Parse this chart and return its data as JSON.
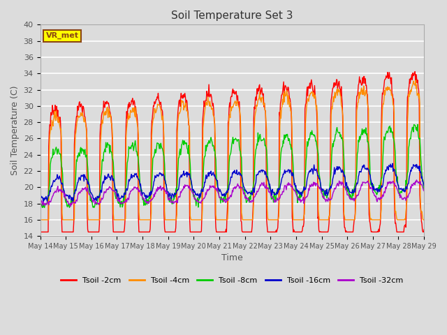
{
  "title": "Soil Temperature Set 3",
  "xlabel": "Time",
  "ylabel": "Soil Temperature (C)",
  "ylim": [
    14,
    40
  ],
  "annotation": "VR_met",
  "annotation_color": "#8B4513",
  "annotation_bg": "#FFFF00",
  "background_color": "#DCDCDC",
  "grid_color": "white",
  "series": [
    {
      "label": "Tsoil -2cm",
      "color": "#FF0000",
      "lw": 1.0
    },
    {
      "label": "Tsoil -4cm",
      "color": "#FF8C00",
      "lw": 1.0
    },
    {
      "label": "Tsoil -8cm",
      "color": "#00CC00",
      "lw": 1.0
    },
    {
      "label": "Tsoil -16cm",
      "color": "#0000CC",
      "lw": 1.0
    },
    {
      "label": "Tsoil -32cm",
      "color": "#AA00CC",
      "lw": 1.0
    }
  ],
  "tick_dates": [
    "May 14",
    "May 15",
    "May 16",
    "May 17",
    "May 18",
    "May 19",
    "May 20",
    "May 21",
    "May 22",
    "May 23",
    "May 24",
    "May 25",
    "May 26",
    "May 27",
    "May 28",
    "May 29"
  ],
  "yticks": [
    14,
    16,
    18,
    20,
    22,
    24,
    26,
    28,
    30,
    32,
    34,
    36,
    38,
    40
  ]
}
